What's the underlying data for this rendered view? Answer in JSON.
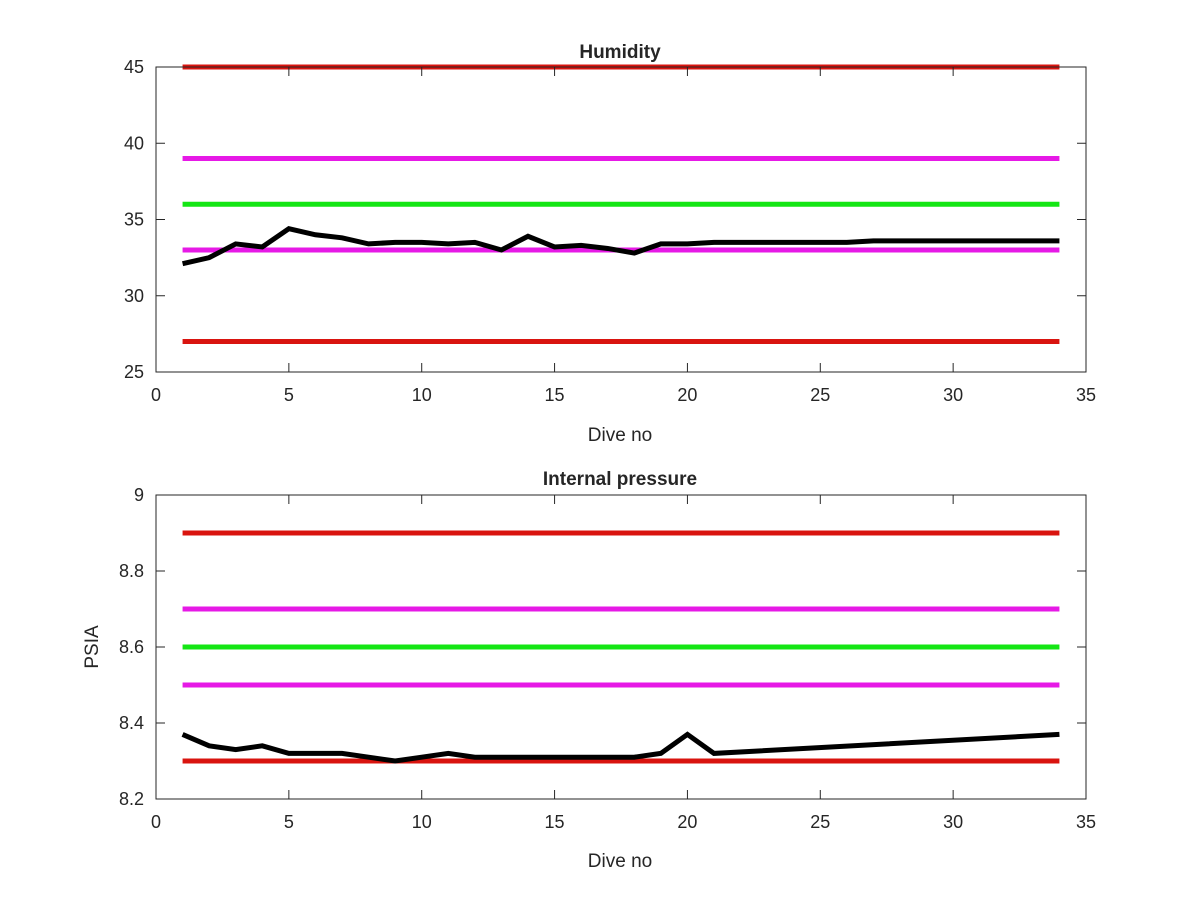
{
  "figure": {
    "background": "#ffffff",
    "axis_color": "#262626"
  },
  "chart_data": [
    {
      "type": "line",
      "title": "Humidity",
      "xlabel": "Dive no",
      "ylabel": "",
      "xlim": [
        0,
        35
      ],
      "ylim": [
        25,
        45
      ],
      "xticks": [
        0,
        5,
        10,
        15,
        20,
        25,
        30,
        35
      ],
      "yticks": [
        25,
        30,
        35,
        40,
        45
      ],
      "grid": false,
      "legend": "none",
      "series": [
        {
          "color": "#000000",
          "x": [
            1,
            2,
            3,
            4,
            5,
            6,
            7,
            8,
            9,
            10,
            11,
            12,
            13,
            14,
            15,
            16,
            17,
            18,
            19,
            20,
            21,
            22,
            23,
            24,
            25,
            26,
            27,
            28,
            29,
            30,
            31,
            32,
            33,
            34
          ],
          "y": [
            32.1,
            32.5,
            33.4,
            33.2,
            34.4,
            34.0,
            33.8,
            33.4,
            33.5,
            33.5,
            33.4,
            33.5,
            33.0,
            33.9,
            33.2,
            33.3,
            33.1,
            32.8,
            33.4,
            33.4,
            33.5,
            33.5,
            33.5,
            33.5,
            33.5,
            33.5,
            33.6,
            33.6,
            33.6,
            33.6,
            33.6,
            33.6,
            33.6,
            33.6
          ]
        }
      ],
      "limit_lines": [
        {
          "y": 45,
          "color": "#d9140f",
          "x": [
            1,
            34
          ]
        },
        {
          "y": 39,
          "color": "#e619e6",
          "x": [
            1,
            34
          ]
        },
        {
          "y": 36,
          "color": "#14e614",
          "x": [
            1,
            34
          ]
        },
        {
          "y": 33,
          "color": "#e619e6",
          "x": [
            1,
            34
          ]
        },
        {
          "y": 27,
          "color": "#d9140f",
          "x": [
            1,
            34
          ]
        }
      ]
    },
    {
      "type": "line",
      "title": "Internal pressure",
      "xlabel": "Dive no",
      "ylabel": "PSIA",
      "xlim": [
        0,
        35
      ],
      "ylim": [
        8.2,
        9
      ],
      "xticks": [
        0,
        5,
        10,
        15,
        20,
        25,
        30,
        35
      ],
      "yticks": [
        8.2,
        8.4,
        8.6,
        8.8,
        9
      ],
      "grid": false,
      "legend": "none",
      "series": [
        {
          "color": "#000000",
          "x": [
            1,
            2,
            3,
            4,
            5,
            6,
            7,
            8,
            9,
            10,
            11,
            12,
            13,
            14,
            15,
            16,
            17,
            18,
            19,
            20,
            21,
            34
          ],
          "y": [
            8.37,
            8.34,
            8.33,
            8.34,
            8.32,
            8.32,
            8.32,
            8.31,
            8.3,
            8.31,
            8.32,
            8.31,
            8.31,
            8.31,
            8.31,
            8.31,
            8.31,
            8.31,
            8.32,
            8.37,
            8.32,
            8.37
          ]
        }
      ],
      "limit_lines": [
        {
          "y": 8.9,
          "color": "#d9140f",
          "x": [
            1,
            34
          ]
        },
        {
          "y": 8.7,
          "color": "#e619e6",
          "x": [
            1,
            34
          ]
        },
        {
          "y": 8.6,
          "color": "#14e614",
          "x": [
            1,
            34
          ]
        },
        {
          "y": 8.5,
          "color": "#e619e6",
          "x": [
            1,
            34
          ]
        },
        {
          "y": 8.3,
          "color": "#d9140f",
          "x": [
            1,
            34
          ]
        }
      ]
    }
  ]
}
